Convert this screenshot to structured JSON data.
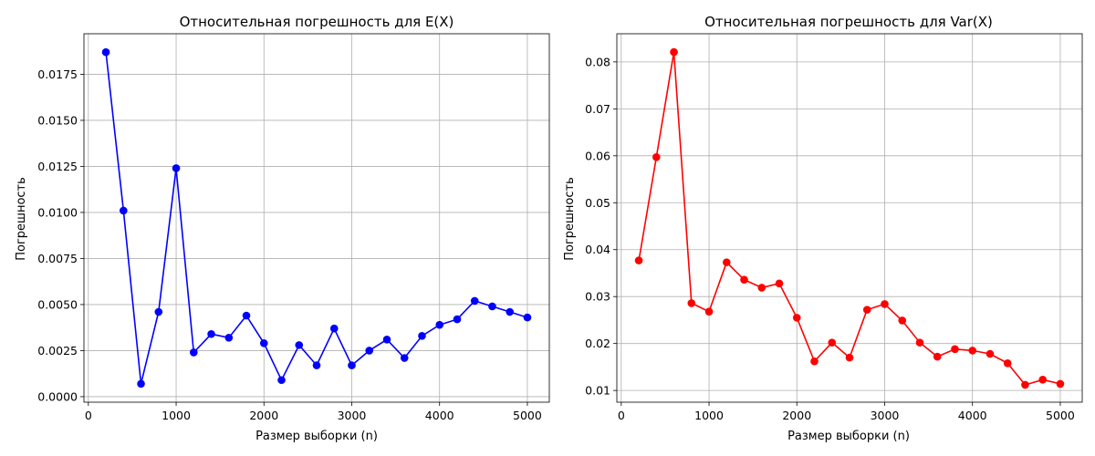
{
  "chart_data": [
    {
      "type": "line",
      "title": "Относительная погрешность для E(X)",
      "xlabel": "Размер выборки (n)",
      "ylabel": "Погрешность",
      "xlim": [
        -50,
        5250
      ],
      "ylim": [
        -0.0003,
        0.0197
      ],
      "xticks": [
        0,
        1000,
        2000,
        3000,
        4000,
        5000
      ],
      "xtick_labels": [
        "0",
        "1000",
        "2000",
        "3000",
        "4000",
        "5000"
      ],
      "yticks": [
        0,
        0.0025,
        0.005,
        0.0075,
        0.01,
        0.0125,
        0.015,
        0.0175
      ],
      "ytick_labels": [
        "0.0000",
        "0.0025",
        "0.0050",
        "0.0075",
        "0.0100",
        "0.0125",
        "0.0150",
        "0.0175"
      ],
      "grid": true,
      "color": "#0000ff",
      "marker": "circle",
      "x": [
        200,
        400,
        600,
        800,
        1000,
        1200,
        1400,
        1600,
        1800,
        2000,
        2200,
        2400,
        2600,
        2800,
        3000,
        3200,
        3400,
        3600,
        3800,
        4000,
        4200,
        4400,
        4600,
        4800,
        5000
      ],
      "y": [
        0.0187,
        0.0101,
        0.0007,
        0.0046,
        0.0124,
        0.0024,
        0.0034,
        0.0032,
        0.0044,
        0.0029,
        0.0009,
        0.0028,
        0.0017,
        0.0037,
        0.0017,
        0.0025,
        0.0031,
        0.0021,
        0.0033,
        0.0039,
        0.0042,
        0.0052,
        0.0049,
        0.0046,
        0.0043
      ]
    },
    {
      "type": "line",
      "title": "Относительная погрешность для Var(X)",
      "xlabel": "Размер выборки (n)",
      "ylabel": "Погрешность",
      "xlim": [
        -50,
        5250
      ],
      "ylim": [
        0.0075,
        0.086
      ],
      "xticks": [
        0,
        1000,
        2000,
        3000,
        4000,
        5000
      ],
      "xtick_labels": [
        "0",
        "1000",
        "2000",
        "3000",
        "4000",
        "5000"
      ],
      "yticks": [
        0.01,
        0.02,
        0.03,
        0.04,
        0.05,
        0.06,
        0.07,
        0.08
      ],
      "ytick_labels": [
        "0.01",
        "0.02",
        "0.03",
        "0.04",
        "0.05",
        "0.06",
        "0.07",
        "0.08"
      ],
      "grid": true,
      "color": "#ff0000",
      "marker": "circle",
      "x": [
        200,
        400,
        600,
        800,
        1000,
        1200,
        1400,
        1600,
        1800,
        2000,
        2200,
        2400,
        2600,
        2800,
        3000,
        3200,
        3400,
        3600,
        3800,
        4000,
        4200,
        4400,
        4600,
        4800,
        5000
      ],
      "y": [
        0.0377,
        0.0597,
        0.0821,
        0.0286,
        0.0268,
        0.0373,
        0.0336,
        0.0319,
        0.0328,
        0.0255,
        0.0162,
        0.0202,
        0.017,
        0.0272,
        0.0284,
        0.0249,
        0.0202,
        0.0172,
        0.0188,
        0.0185,
        0.0178,
        0.0158,
        0.0112,
        0.0123,
        0.0114
      ]
    }
  ]
}
